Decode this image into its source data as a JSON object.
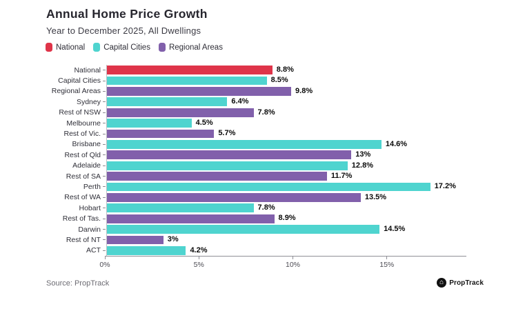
{
  "header": {
    "title": "Annual Home Price Growth",
    "subtitle": "Year to December 2025, All Dwellings"
  },
  "legend": [
    {
      "label": "National",
      "series": "national"
    },
    {
      "label": "Capital Cities",
      "series": "capital"
    },
    {
      "label": "Regional Areas",
      "series": "regional"
    }
  ],
  "colors": {
    "national": "#df3449",
    "capital": "#4fd4cf",
    "regional": "#8160ab",
    "axis": "#8f8f96",
    "text_dark": "#27262e"
  },
  "chart_data": {
    "type": "bar",
    "orientation": "horizontal",
    "title": "Annual Home Price Growth",
    "subtitle": "Year to December 2025, All Dwellings",
    "xlabel": "",
    "ylabel": "",
    "xlim": [
      0,
      19.2
    ],
    "grid": false,
    "legend_position": "top",
    "x_ticks": [
      "0%",
      "5%",
      "10%",
      "15%"
    ],
    "x_tick_values": [
      0,
      5,
      10,
      15
    ],
    "categories": [
      "National",
      "Capital Cities",
      "Regional Areas",
      "Sydney",
      "Rest of NSW",
      "Melbourne",
      "Rest of Vic.",
      "Brisbane",
      "Rest of Qld",
      "Adelaide",
      "Rest of SA",
      "Perth",
      "Rest of WA",
      "Hobart",
      "Rest of Tas.",
      "Darwin",
      "Rest of NT",
      "ACT"
    ],
    "values": [
      8.8,
      8.5,
      9.8,
      6.4,
      7.8,
      4.5,
      5.7,
      14.6,
      13,
      12.8,
      11.7,
      17.2,
      13.5,
      7.8,
      8.9,
      14.5,
      3,
      4.2
    ],
    "value_labels": [
      "8.8%",
      "8.5%",
      "9.8%",
      "6.4%",
      "7.8%",
      "4.5%",
      "5.7%",
      "14.6%",
      "13%",
      "12.8%",
      "11.7%",
      "17.2%",
      "13.5%",
      "7.8%",
      "8.9%",
      "14.5%",
      "3%",
      "4.2%"
    ],
    "series_of": [
      "national",
      "capital",
      "regional",
      "capital",
      "regional",
      "capital",
      "regional",
      "capital",
      "regional",
      "capital",
      "regional",
      "capital",
      "regional",
      "capital",
      "regional",
      "capital",
      "regional",
      "capital"
    ]
  },
  "footer": {
    "source": "Source: PropTrack",
    "logo_text": "PropTrack",
    "logo_icon": "house-icon",
    "logo_glyph": "⌂"
  }
}
